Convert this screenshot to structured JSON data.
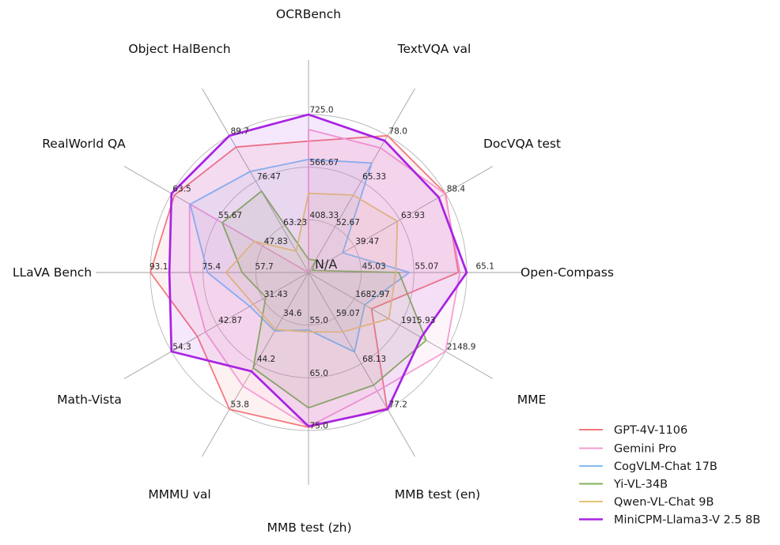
{
  "chart_data": {
    "type": "radar",
    "n_rings": 3,
    "grid": true,
    "legend_position": "lower right",
    "missing_value_label": "N/A",
    "axes": [
      {
        "label": "OCRBench",
        "min": 250,
        "max": 725,
        "ticks": [
          408.33,
          566.67,
          725.0
        ],
        "tick_labels": [
          "408.33",
          "566.67",
          "725.0"
        ]
      },
      {
        "label": "TextVQA val",
        "min": 40,
        "max": 78,
        "ticks": [
          52.67,
          65.33,
          78.0
        ],
        "tick_labels": [
          "52.67",
          "65.33",
          "78.0"
        ]
      },
      {
        "label": "DocVQA test",
        "min": 15,
        "max": 88.4,
        "ticks": [
          39.47,
          63.93,
          88.4
        ],
        "tick_labels": [
          "39.47",
          "63.93",
          "88.4"
        ]
      },
      {
        "label": "Open-Compass",
        "min": 35,
        "max": 65.1,
        "ticks": [
          45.03,
          55.07,
          65.1
        ],
        "tick_labels": [
          "45.03",
          "55.07",
          "65.1"
        ]
      },
      {
        "label": "MME",
        "min": 1450,
        "max": 2148.9,
        "ticks": [
          1682.97,
          1915.93,
          2148.9
        ],
        "tick_labels": [
          "1682.97",
          "1915.93",
          "2148.9"
        ]
      },
      {
        "label": "MMB test (en)",
        "min": 50,
        "max": 77.2,
        "ticks": [
          59.07,
          68.13,
          77.2
        ],
        "tick_labels": [
          "59.07",
          "68.13",
          "77.2"
        ]
      },
      {
        "label": "MMB test (zh)",
        "min": 45,
        "max": 75,
        "ticks": [
          55.0,
          65.0,
          75.0
        ],
        "tick_labels": [
          "55.0",
          "65.0",
          "75.0"
        ]
      },
      {
        "label": "MMMU val",
        "min": 25,
        "max": 53.8,
        "ticks": [
          34.6,
          44.2,
          53.8
        ],
        "tick_labels": [
          "34.6",
          "44.2",
          "53.8"
        ]
      },
      {
        "label": "Math-Vista",
        "min": 20,
        "max": 54.3,
        "ticks": [
          31.43,
          42.87,
          54.3
        ],
        "tick_labels": [
          "31.43",
          "42.87",
          "54.3"
        ]
      },
      {
        "label": "LLaVA Bench",
        "min": 40,
        "max": 93.1,
        "ticks": [
          57.7,
          75.4,
          93.1
        ],
        "tick_labels": [
          "57.7",
          "75.4",
          "93.1"
        ]
      },
      {
        "label": "RealWorld QA",
        "min": 40,
        "max": 63.5,
        "ticks": [
          47.83,
          55.67,
          63.5
        ],
        "tick_labels": [
          "47.83",
          "55.67",
          "63.5"
        ]
      },
      {
        "label": "Object HalBench",
        "min": 50,
        "max": 89.7,
        "ticks": [
          63.23,
          76.47,
          89.7
        ],
        "tick_labels": [
          "63.23",
          "76.47",
          "89.7"
        ]
      }
    ],
    "series": [
      {
        "name": "GPT-4V-1106",
        "color": "#f3797d",
        "values": [
          645,
          78.0,
          88.4,
          63.5,
          1771.5,
          77.0,
          74.4,
          53.8,
          47.8,
          93.1,
          63.0,
          86.4
        ]
      },
      {
        "name": "Gemini Pro",
        "color": "#f59cd2",
        "values": [
          680,
          74.6,
          88.1,
          63.8,
          2148.9,
          73.6,
          74.3,
          48.9,
          45.8,
          79.9,
          60.4,
          null
        ]
      },
      {
        "name": "CogVLM-Chat 17B",
        "color": "#84bcf0",
        "values": [
          590,
          70.4,
          33.3,
          54.2,
          1736.6,
          65.8,
          55.9,
          37.3,
          34.7,
          73.9,
          60.3,
          79.3
        ]
      },
      {
        "name": "Yi-VL-34B",
        "color": "#85b15c",
        "values": [
          290,
          43.4,
          16.9,
          52.2,
          2050.2,
          72.4,
          70.7,
          45.1,
          30.7,
          62.3,
          54.8,
          73.6
        ]
      },
      {
        "name": "Qwen-VL-Chat 9B",
        "color": "#e5c378",
        "values": [
          488,
          61.5,
          62.6,
          51.6,
          1860.0,
          61.8,
          56.3,
          37.0,
          33.8,
          67.7,
          49.3,
          56.2
        ]
      },
      {
        "name": "MiniCPM-Llama3-V 2.5 8B",
        "color": "#a822e4",
        "values": [
          725,
          76.6,
          84.8,
          65.1,
          2024.6,
          77.2,
          74.2,
          45.8,
          54.3,
          86.7,
          63.5,
          89.7
        ]
      }
    ],
    "colors": {
      "grid_ring": "#b5b5b5",
      "axis_spoke": "#a0a0a0",
      "tick_text": "#262626",
      "axis_text": "#111111",
      "legend_text": "#1a1a1a",
      "background": "#ffffff"
    }
  }
}
